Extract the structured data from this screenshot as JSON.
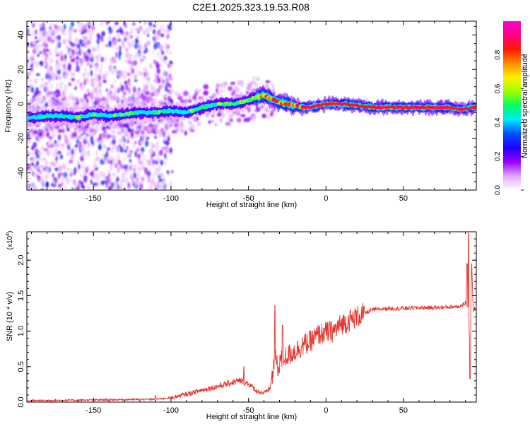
{
  "title": "C2E1.2025.323.19.53.R08",
  "chart_data": [
    {
      "type": "heatmap",
      "xlabel": "Height of straight line (km)",
      "ylabel": "Frequency (Hz)",
      "xlim": [
        -193,
        97
      ],
      "ylim": [
        -50,
        48
      ],
      "xticks": [
        -150,
        -100,
        -50,
        0,
        50
      ],
      "yticks": [
        -40,
        -20,
        0,
        20,
        40
      ],
      "ridge": {
        "x": [
          -190,
          -180,
          -170,
          -160,
          -150,
          -140,
          -130,
          -120,
          -110,
          -100,
          -90,
          -80,
          -70,
          -60,
          -55,
          -50,
          -45,
          -40,
          -35,
          -30,
          -25,
          -20,
          -15,
          -10,
          -5,
          0,
          10,
          20,
          30,
          40,
          50,
          60,
          70,
          80,
          85,
          90,
          95
        ],
        "y": [
          -8,
          -7,
          -7,
          -8,
          -6,
          -7,
          -6,
          -5,
          -5,
          -4,
          -5,
          -2,
          0,
          0,
          1,
          2,
          4,
          5,
          3,
          1,
          0,
          -1,
          -2,
          -2,
          -1,
          0,
          0,
          -1,
          -2,
          -2,
          -2,
          -2,
          -2,
          -2,
          -3,
          -3,
          -2
        ]
      },
      "colorbar": {
        "label": "Normalized spectral amplitude",
        "ticks": [
          "0.0",
          "0.2",
          "0.4",
          "0.6",
          "0.8"
        ],
        "range": [
          0,
          1
        ],
        "colors": [
          "#ffffff",
          "#e0a6ff",
          "#9b00ff",
          "#2000ff",
          "#0050ff",
          "#00e8ff",
          "#00ff60",
          "#9eff00",
          "#fff000",
          "#ff8c00",
          "#ff1a00",
          "#ff0080",
          "#ff00d0"
        ]
      }
    },
    {
      "type": "line",
      "xlabel": "Height of straight line (km)",
      "ylabel": "SNR (10 * v/v)",
      "scale_label": "(x10",
      "scale_exp": "4",
      "xlim": [
        -193,
        97
      ],
      "ylim": [
        0,
        2.4
      ],
      "xticks": [
        -150,
        -100,
        -50,
        0,
        50
      ],
      "yticks": [
        "0.0",
        "0.5",
        "1.0",
        "1.5",
        "2.0"
      ],
      "series": [
        {
          "name": "SNR",
          "color": "#e8322b",
          "trend": {
            "x": [
              -193,
              -150,
              -110,
              -100,
              -90,
              -80,
              -70,
              -60,
              -55,
              -50,
              -45,
              -40,
              -36,
              -34,
              -33,
              -31,
              -30,
              -28,
              -25,
              -20,
              -15,
              -10,
              -5,
              0,
              5,
              10,
              15,
              20,
              25,
              30,
              40,
              50,
              60,
              70,
              80,
              88,
              90,
              92,
              93,
              94,
              95,
              97
            ],
            "y": [
              0.02,
              0.03,
              0.04,
              0.06,
              0.11,
              0.17,
              0.22,
              0.28,
              0.3,
              0.26,
              0.16,
              0.12,
              0.2,
              0.45,
              0.75,
              0.4,
              0.6,
              0.62,
              0.65,
              0.72,
              0.8,
              0.85,
              0.95,
              0.98,
              1.0,
              1.1,
              1.15,
              1.2,
              1.25,
              1.3,
              1.32,
              1.32,
              1.33,
              1.33,
              1.34,
              1.36,
              1.4,
              1.3,
              0.6,
              2.0,
              1.3,
              1.33
            ]
          },
          "spikes": [
            {
              "x": -33,
              "y": 1.36
            },
            {
              "x": -28,
              "y": 1.08
            },
            {
              "x": -53,
              "y": 0.5
            },
            {
              "x": -110,
              "y": 0.09
            },
            {
              "x": 92,
              "y": 2.38
            },
            {
              "x": 91,
              "y": 1.95
            },
            {
              "x": 93,
              "y": 0.33
            }
          ]
        }
      ]
    }
  ]
}
